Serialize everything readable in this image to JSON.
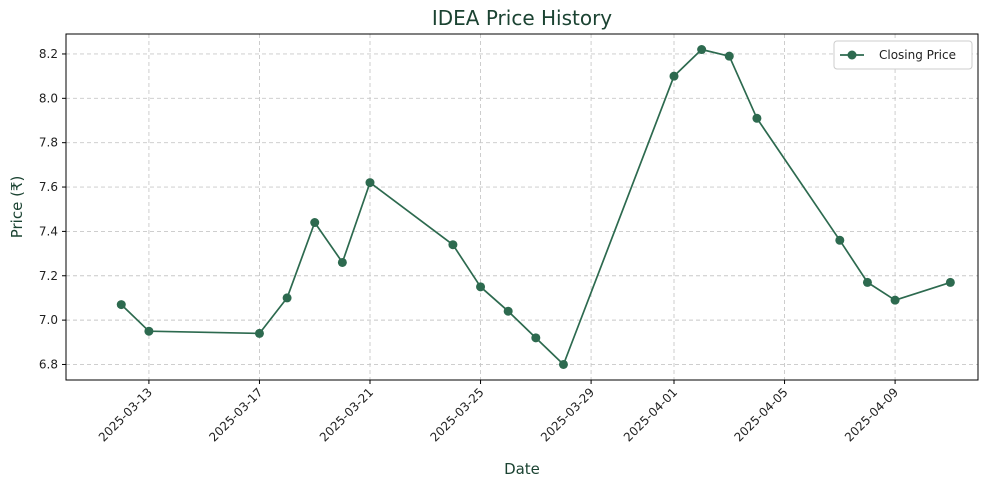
{
  "chart_data": {
    "type": "line",
    "title": "IDEA Price History",
    "xlabel": "Date",
    "ylabel": "Price (₹)",
    "x_tick_labels": [
      "2025-03-13",
      "2025-03-17",
      "2025-03-21",
      "2025-03-25",
      "2025-03-29",
      "2025-04-01",
      "2025-04-05",
      "2025-04-09"
    ],
    "y_tick_labels": [
      "6.8",
      "7.0",
      "7.2",
      "7.4",
      "7.6",
      "7.8",
      "8.0",
      "8.2"
    ],
    "xlim": [
      "2025-03-10",
      "2025-04-12"
    ],
    "ylim": [
      6.73,
      8.29
    ],
    "grid": true,
    "legend": "top-right",
    "series": [
      {
        "name": "Closing Price",
        "color": "#2d6a4f",
        "marker": "circle",
        "x": [
          "2025-03-12",
          "2025-03-13",
          "2025-03-17",
          "2025-03-18",
          "2025-03-19",
          "2025-03-20",
          "2025-03-21",
          "2025-03-24",
          "2025-03-25",
          "2025-03-26",
          "2025-03-27",
          "2025-03-28",
          "2025-04-01",
          "2025-04-02",
          "2025-04-03",
          "2025-04-04",
          "2025-04-07",
          "2025-04-08",
          "2025-04-09",
          "2025-04-11"
        ],
        "values": [
          7.07,
          6.95,
          6.94,
          7.1,
          7.44,
          7.26,
          7.62,
          7.34,
          7.15,
          7.04,
          6.92,
          6.8,
          8.1,
          8.22,
          8.19,
          7.91,
          7.36,
          7.17,
          7.09,
          7.17
        ]
      }
    ]
  },
  "colors": {
    "series": "#2d6a4f",
    "title_text": "#1b4332",
    "grid": "#c8c8c8"
  }
}
